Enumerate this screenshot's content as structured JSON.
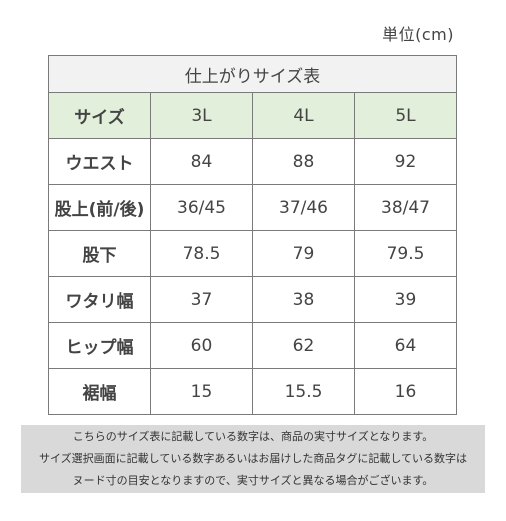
{
  "unit": "単位(cm)",
  "table": {
    "title": "仕上がりサイズ表",
    "header": {
      "label": "サイズ",
      "sizes": [
        "3L",
        "4L",
        "5L"
      ]
    },
    "rows": [
      {
        "label": "ウエスト",
        "values": [
          "84",
          "88",
          "92"
        ]
      },
      {
        "label": "股上(前/後)",
        "values": [
          "36/45",
          "37/46",
          "38/47"
        ]
      },
      {
        "label": "股下",
        "values": [
          "78.5",
          "79",
          "79.5"
        ]
      },
      {
        "label": "ワタリ幅",
        "values": [
          "37",
          "38",
          "39"
        ]
      },
      {
        "label": "ヒップ幅",
        "values": [
          "60",
          "62",
          "64"
        ]
      },
      {
        "label": "裾幅",
        "values": [
          "15",
          "15.5",
          "16"
        ]
      }
    ]
  },
  "note": {
    "lines": [
      "こちらのサイズ表に記載している数字は、商品の実寸サイズとなります。",
      "サイズ選択画面に記載している数字あるいはお届けした商品タグに記載している数字は",
      "ヌード寸の目安となりますので、実寸サイズと異なる場合がございます。"
    ]
  },
  "colors": {
    "header_bg": "#e2efda",
    "title_bg": "#f2f2f2",
    "note_bg": "#d9d9d9",
    "border": "#7a7a7a"
  }
}
